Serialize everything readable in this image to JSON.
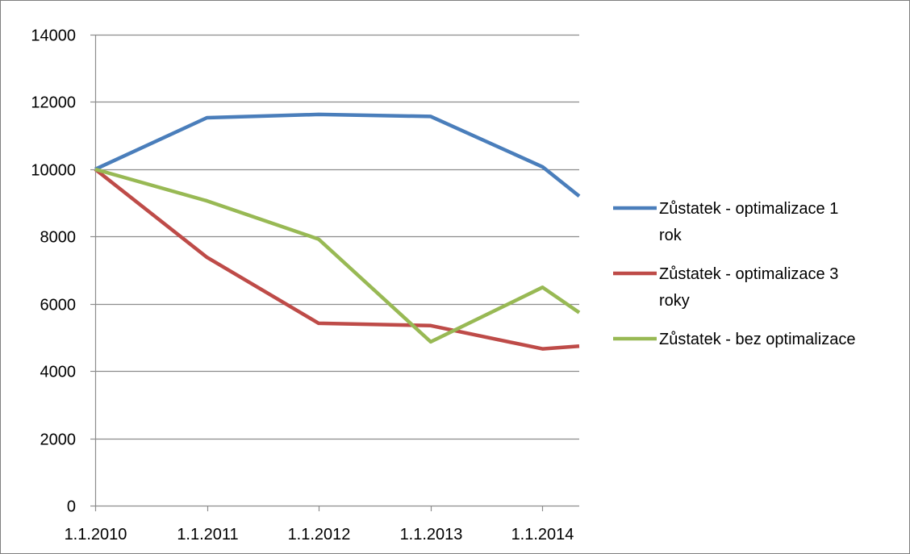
{
  "chart_data": {
    "type": "line",
    "title": "",
    "xlabel": "",
    "ylabel": "",
    "x_ticks": [
      "1.1.2010",
      "1.1.2011",
      "1.1.2012",
      "1.1.2013",
      "1.1.2014"
    ],
    "y_ticks": [
      "0",
      "2000",
      "4000",
      "6000",
      "8000",
      "10000",
      "12000",
      "14000"
    ],
    "ylim": [
      0,
      14000
    ],
    "xlim": [
      "2010-01-01",
      "2014-05-01"
    ],
    "grid": "horizontal",
    "legend_position": "right",
    "series": [
      {
        "name": "Zůstatek - optimalizace 1 rok",
        "legend_lines": [
          "Zůstatek - optimalizace 1",
          "rok"
        ],
        "color": "#4a7ebb",
        "points": [
          {
            "x": "2010-01-01",
            "y": 10000
          },
          {
            "x": "2011-01-01",
            "y": 11530
          },
          {
            "x": "2012-01-01",
            "y": 11630
          },
          {
            "x": "2013-01-01",
            "y": 11570
          },
          {
            "x": "2014-01-01",
            "y": 10070
          },
          {
            "x": "2014-05-01",
            "y": 9200
          }
        ]
      },
      {
        "name": "Zůstatek - optimalizace 3 roky",
        "legend_lines": [
          "Zůstatek - optimalizace 3",
          "roky"
        ],
        "color": "#be4b48",
        "points": [
          {
            "x": "2010-01-01",
            "y": 10000
          },
          {
            "x": "2011-01-01",
            "y": 7380
          },
          {
            "x": "2012-01-01",
            "y": 5420
          },
          {
            "x": "2013-01-01",
            "y": 5350
          },
          {
            "x": "2014-01-01",
            "y": 4660
          },
          {
            "x": "2014-05-01",
            "y": 4740
          }
        ]
      },
      {
        "name": "Zůstatek - bez optimalizace",
        "legend_lines": [
          "Zůstatek - bez optimalizace"
        ],
        "color": "#98b954",
        "points": [
          {
            "x": "2010-01-01",
            "y": 10000
          },
          {
            "x": "2011-01-01",
            "y": 9060
          },
          {
            "x": "2012-01-01",
            "y": 7920
          },
          {
            "x": "2013-01-01",
            "y": 4870
          },
          {
            "x": "2014-01-01",
            "y": 6490
          },
          {
            "x": "2014-05-01",
            "y": 5740
          }
        ]
      }
    ]
  }
}
